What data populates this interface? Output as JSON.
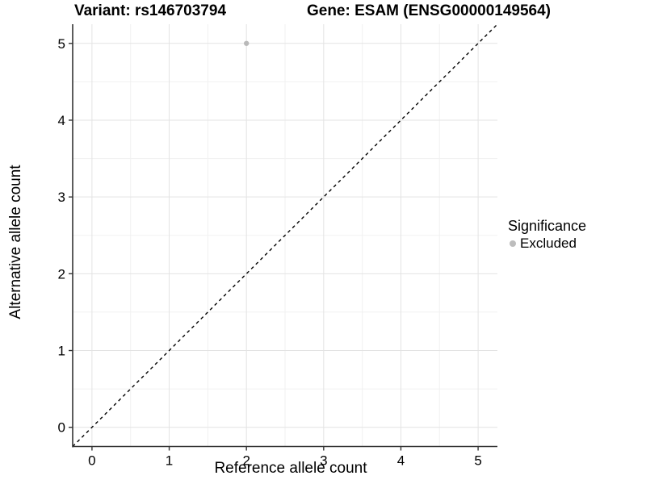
{
  "chart_data": {
    "type": "scatter",
    "title_left": "Variant: rs146703794",
    "title_right": "Gene: ESAM (ENSG00000149564)",
    "xlabel": "Reference allele count",
    "ylabel": "Alternative allele count",
    "axis_range": [
      -0.25,
      5.25
    ],
    "x_ticks": [
      0,
      1,
      2,
      3,
      4,
      5
    ],
    "y_ticks": [
      0,
      1,
      2,
      3,
      4,
      5
    ],
    "minor_ticks": [
      0.5,
      1.5,
      2.5,
      3.5,
      4.5
    ],
    "grid": true,
    "points": [
      {
        "x": 2,
        "y": 5,
        "series": "Excluded"
      }
    ],
    "identity_line": {
      "slope": 1,
      "intercept": 0,
      "style": "dashed",
      "color": "#000000"
    },
    "legend": {
      "title": "Significance",
      "position": "right",
      "items": [
        {
          "label": "Excluded",
          "color": "#bdbdbd"
        }
      ]
    },
    "colors": {
      "point": "#b9b9b9",
      "grid_major": "#e3e3e3",
      "grid_minor": "#f1f1f1",
      "axis_line": "#333333",
      "tick_text": "#000000",
      "background": "#ffffff"
    }
  }
}
